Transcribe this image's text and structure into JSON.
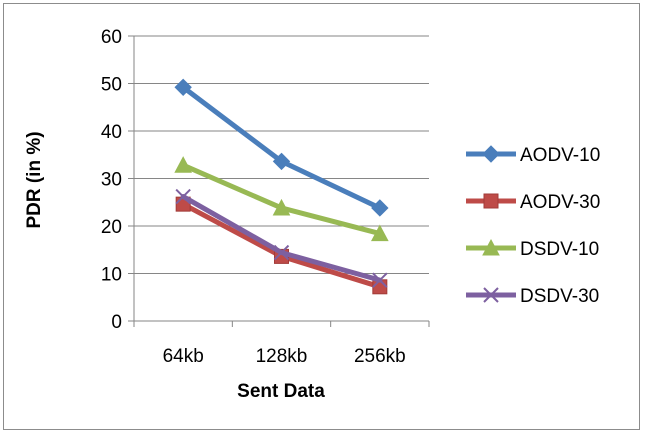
{
  "chart_data": {
    "type": "line",
    "title": "",
    "xlabel": "Sent Data",
    "ylabel": "PDR (in %)",
    "categories": [
      "64kb",
      "128kb",
      "256kb"
    ],
    "ylim": [
      0,
      60
    ],
    "yticks": [
      0,
      10,
      20,
      30,
      40,
      50,
      60
    ],
    "grid": "horizontal",
    "legend_position": "right",
    "series": [
      {
        "name": "AODV-10",
        "values": [
          49.2,
          33.6,
          23.8
        ],
        "color": "#4a7ebb",
        "marker": "diamond"
      },
      {
        "name": "AODV-30",
        "values": [
          24.6,
          13.6,
          7.2
        ],
        "color": "#be4b48",
        "marker": "square"
      },
      {
        "name": "DSDV-10",
        "values": [
          32.8,
          23.8,
          18.4
        ],
        "color": "#98b954",
        "marker": "triangle"
      },
      {
        "name": "DSDV-30",
        "values": [
          26.2,
          14.4,
          8.6
        ],
        "color": "#7d60a0",
        "marker": "x"
      }
    ]
  }
}
